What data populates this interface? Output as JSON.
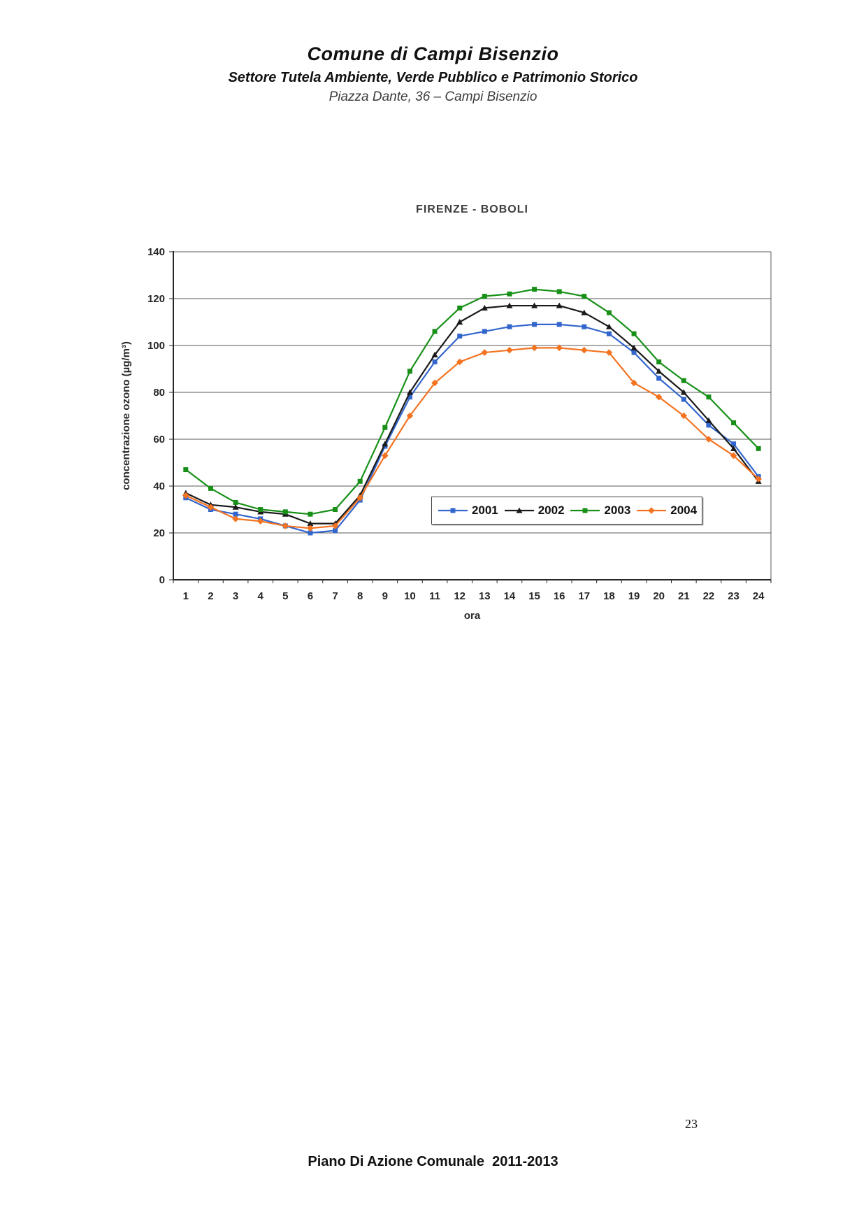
{
  "header": {
    "organization": "Comune di Campi Bisenzio",
    "department": "Settore Tutela Ambiente, Verde Pubblico e Patrimonio Storico",
    "address": "Piazza Dante, 36 – Campi Bisenzio"
  },
  "chart_data": {
    "type": "line",
    "title": "FIRENZE - BOBOLI",
    "xlabel": "ora",
    "ylabel": "concentrazione ozono (µg/m³)",
    "x": [
      1,
      2,
      3,
      4,
      5,
      6,
      7,
      8,
      9,
      10,
      11,
      12,
      13,
      14,
      15,
      16,
      17,
      18,
      19,
      20,
      21,
      22,
      23,
      24
    ],
    "ylim": [
      0,
      140
    ],
    "ytick_step": 20,
    "grid": true,
    "legend_position": "inside-bottom",
    "series": [
      {
        "name": "2001",
        "color": "#3366cc",
        "marker": "square",
        "values": [
          35,
          30,
          28,
          26,
          23,
          20,
          21,
          34,
          57,
          78,
          93,
          104,
          106,
          108,
          109,
          109,
          108,
          105,
          97,
          86,
          77,
          66,
          58,
          44
        ]
      },
      {
        "name": "2002",
        "color": "#1a1a1a",
        "marker": "triangle",
        "values": [
          37,
          32,
          31,
          29,
          28,
          24,
          24,
          36,
          58,
          80,
          96,
          110,
          116,
          117,
          117,
          117,
          114,
          108,
          99,
          89,
          80,
          68,
          56,
          42
        ]
      },
      {
        "name": "2003",
        "color": "#189018",
        "marker": "square",
        "values": [
          47,
          39,
          33,
          30,
          29,
          28,
          30,
          42,
          65,
          89,
          106,
          116,
          121,
          122,
          124,
          123,
          121,
          114,
          105,
          93,
          85,
          78,
          67,
          56
        ]
      },
      {
        "name": "2004",
        "color": "#f37321",
        "marker": "diamond",
        "values": [
          36,
          31,
          26,
          25,
          23,
          22,
          23,
          35,
          53,
          70,
          84,
          93,
          97,
          98,
          99,
          99,
          98,
          97,
          84,
          78,
          70,
          60,
          53,
          43
        ]
      }
    ]
  },
  "footer": {
    "title": "Piano Di Azione Comunale  2011-2013",
    "page_number": "23"
  }
}
